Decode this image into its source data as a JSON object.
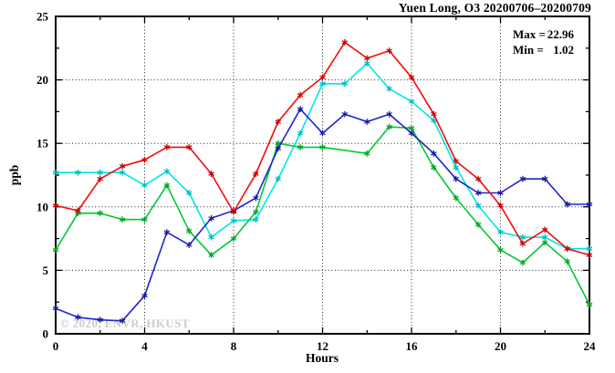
{
  "title": "Yuen Long, O3 20200706–20200709",
  "stats": {
    "max_prefix": "Max =",
    "max_value": "22.96",
    "min_prefix": "Min =",
    "min_value": "1.02"
  },
  "watermark": "© 2020, ENVR, HKUST",
  "chart_data": {
    "type": "line",
    "title": "Yuen Long, O3 20200706–20200709",
    "xlabel": "Hours",
    "ylabel": "ppb",
    "xlim": [
      0,
      24
    ],
    "ylim": [
      0,
      25
    ],
    "x_major_ticks": [
      0,
      4,
      8,
      12,
      16,
      20,
      24
    ],
    "x_minor_step": 2,
    "y_major_ticks": [
      0,
      5,
      10,
      15,
      20,
      25
    ],
    "y_minor_step": 2.5,
    "x_gridlines": [
      4,
      8,
      12,
      16,
      20
    ],
    "y_gridlines": [
      5,
      10,
      15,
      20
    ],
    "grid_style": "dotted",
    "legend": "none",
    "marker": "asterisk",
    "max": 22.96,
    "min": 1.02,
    "x": [
      0,
      1,
      2,
      3,
      4,
      5,
      6,
      7,
      8,
      9,
      10,
      11,
      12,
      13,
      14,
      15,
      16,
      17,
      18,
      19,
      20,
      21,
      22,
      23,
      24
    ],
    "series": [
      {
        "name": "cyan",
        "color": "#00e6e6",
        "marker_color": "#00bdbd",
        "values": [
          12.7,
          12.7,
          12.7,
          12.7,
          11.7,
          12.8,
          11.1,
          7.6,
          8.9,
          9.0,
          12.2,
          15.8,
          19.7,
          19.7,
          21.3,
          19.3,
          18.3,
          16.8,
          13.1,
          10.1,
          8.0,
          7.6,
          7.6,
          6.7,
          6.7
        ]
      },
      {
        "name": "green",
        "color": "#00c832",
        "marker_color": "#00a527",
        "values": [
          6.6,
          9.5,
          9.5,
          9.0,
          9.0,
          11.7,
          8.1,
          6.2,
          7.5,
          9.6,
          15.0,
          14.7,
          14.7,
          null,
          14.2,
          16.3,
          16.2,
          13.1,
          10.7,
          8.6,
          6.6,
          5.6,
          7.2,
          5.7,
          2.3
        ]
      },
      {
        "name": "blue",
        "color": "#2323cd",
        "marker_color": "#1717a2",
        "values": [
          2.0,
          1.3,
          1.1,
          1.02,
          3.0,
          8.0,
          7.0,
          9.1,
          9.7,
          10.7,
          14.6,
          17.7,
          15.8,
          17.3,
          16.7,
          17.3,
          15.8,
          14.2,
          12.2,
          11.1,
          11.1,
          12.2,
          12.2,
          10.2,
          10.2
        ]
      },
      {
        "name": "red",
        "color": "#f20c0c",
        "marker_color": "#c40000",
        "values": [
          10.1,
          9.7,
          12.2,
          13.2,
          13.7,
          14.7,
          14.7,
          12.6,
          9.6,
          12.6,
          16.7,
          18.8,
          20.2,
          22.96,
          21.7,
          22.3,
          20.2,
          17.3,
          13.6,
          12.2,
          10.1,
          7.1,
          8.2,
          6.7,
          6.2
        ]
      }
    ]
  }
}
